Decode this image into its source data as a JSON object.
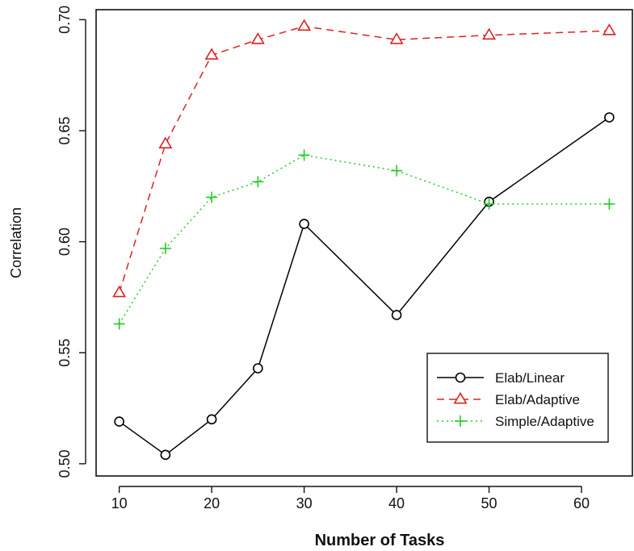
{
  "chart_data": {
    "type": "line",
    "title": "",
    "xlabel": "Number of Tasks",
    "ylabel": "Correlation",
    "xlim": [
      7.5,
      65.5
    ],
    "ylim": [
      0.4945,
      0.7045
    ],
    "x_ticks": [
      10,
      20,
      30,
      40,
      50,
      60
    ],
    "x_tick_labels": [
      "10",
      "20",
      "30",
      "40",
      "50",
      "60"
    ],
    "y_ticks": [
      0.5,
      0.55,
      0.6,
      0.65,
      0.7
    ],
    "y_tick_labels": [
      "0.50",
      "0.55",
      "0.60",
      "0.65",
      "0.70"
    ],
    "grid": false,
    "legend_position": "bottom-right",
    "series": [
      {
        "name": "Elab/Linear",
        "color": "#000000",
        "line_style": "solid",
        "marker": "circle",
        "x": [
          10,
          15,
          20,
          25,
          30,
          40,
          50,
          63
        ],
        "y": [
          0.519,
          0.504,
          0.52,
          0.543,
          0.608,
          0.567,
          0.618,
          0.656
        ]
      },
      {
        "name": "Elab/Adaptive",
        "color": "#dd2222",
        "line_style": "dashed",
        "marker": "triangle",
        "x": [
          10,
          15,
          20,
          25,
          30,
          40,
          50,
          63
        ],
        "y": [
          0.577,
          0.644,
          0.684,
          0.691,
          0.697,
          0.691,
          0.693,
          0.695
        ]
      },
      {
        "name": "Simple/Adaptive",
        "color": "#22cc22",
        "line_style": "dotted",
        "marker": "plus",
        "x": [
          10,
          15,
          20,
          25,
          30,
          40,
          50,
          63
        ],
        "y": [
          0.563,
          0.597,
          0.62,
          0.627,
          0.639,
          0.632,
          0.617,
          0.617
        ]
      }
    ]
  }
}
